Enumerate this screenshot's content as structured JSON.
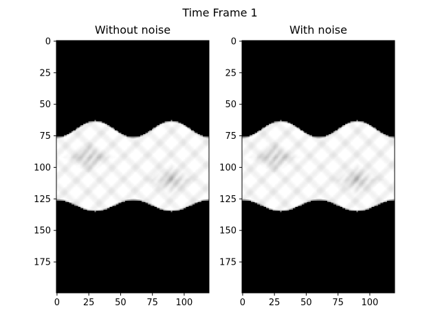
{
  "figure": {
    "suptitle": "Time Frame 1"
  },
  "chart_data": [
    {
      "type": "heatmap",
      "title": "Without noise",
      "xlabel": "",
      "ylabel": "",
      "xlim": [
        -0.5,
        119.5
      ],
      "ylim": [
        199.5,
        -0.5
      ],
      "x_ticks": [
        0,
        25,
        50,
        75,
        100
      ],
      "y_ticks": [
        0,
        25,
        50,
        75,
        100,
        125,
        150,
        175
      ],
      "grid": false,
      "colormap": "gray",
      "image": {
        "width": 120,
        "height": 200,
        "background_value": 0,
        "band_value": 1,
        "band_top_center": 69.5,
        "band_top_amplitude": 6.5,
        "band_bottom_center": 130.5,
        "band_bottom_amplitude": 4.5,
        "period": 60,
        "phase_x": 30,
        "inner_shading": [
          {
            "x_center": 25,
            "y_center": 92,
            "strength": 0.25
          },
          {
            "x_center": 90,
            "y_center": 110,
            "strength": 0.25
          }
        ]
      }
    },
    {
      "type": "heatmap",
      "title": "With noise",
      "xlabel": "",
      "ylabel": "",
      "xlim": [
        -0.5,
        119.5
      ],
      "ylim": [
        199.5,
        -0.5
      ],
      "x_ticks": [
        0,
        25,
        50,
        75,
        100
      ],
      "y_ticks": [
        0,
        25,
        50,
        75,
        100,
        125,
        150,
        175
      ],
      "grid": false,
      "colormap": "gray",
      "image": {
        "width": 120,
        "height": 200,
        "background_value": 0,
        "band_value": 1,
        "band_top_center": 69.5,
        "band_top_amplitude": 6.5,
        "band_bottom_center": 130.5,
        "band_bottom_amplitude": 4.5,
        "period": 60,
        "phase_x": 30,
        "inner_shading": [
          {
            "x_center": 25,
            "y_center": 92,
            "strength": 0.25
          },
          {
            "x_center": 90,
            "y_center": 110,
            "strength": 0.25
          }
        ]
      }
    }
  ]
}
